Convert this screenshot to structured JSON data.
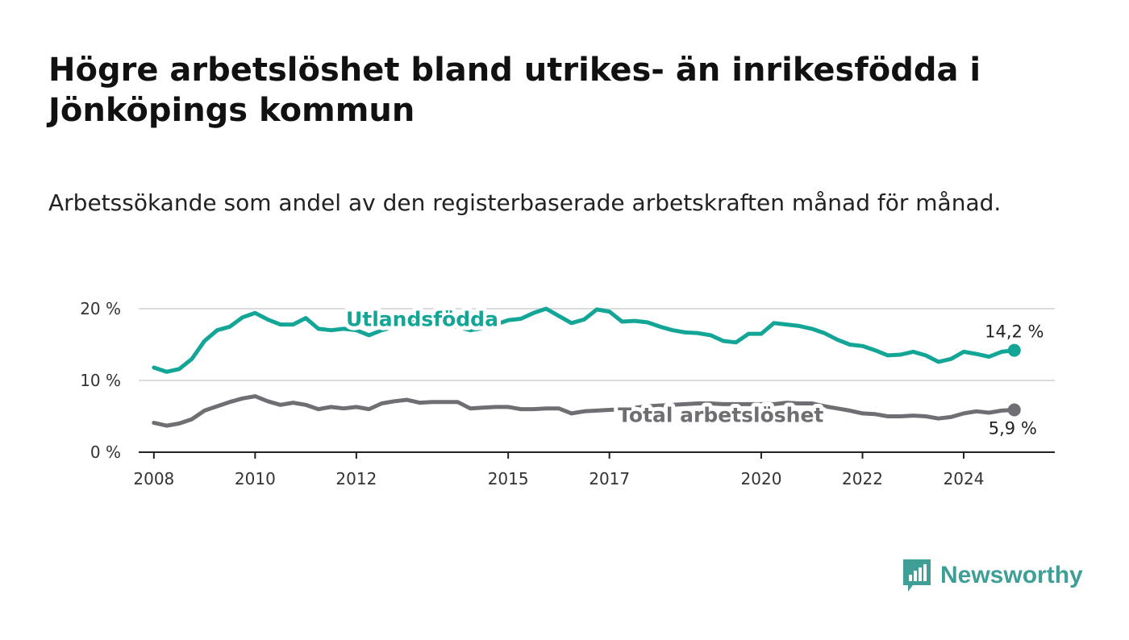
{
  "title": "Högre arbetslöshet bland utrikes- än inrikesfödda i Jönköpings kommun",
  "subtitle": "Arbetssökande som andel av den registerbaserade arbetskraften månad för månad.",
  "brand": {
    "name": "Newsworthy",
    "color": "#3f9f97"
  },
  "chart_data": {
    "type": "line",
    "title": "Högre arbetslöshet bland utrikes- än inrikesfödda i Jönköpings kommun",
    "subtitle": "Arbetssökande som andel av den registerbaserade arbetskraften månad för månad.",
    "xlabel": "",
    "ylabel": "",
    "xlim": [
      2007.7,
      2025.8
    ],
    "ylim": [
      0,
      20
    ],
    "y_ticks": [
      0,
      10,
      20
    ],
    "y_tick_labels": [
      "0 %",
      "10 %",
      "20 %"
    ],
    "x_ticks": [
      2008,
      2010,
      2012,
      2015,
      2017,
      2020,
      2022,
      2024
    ],
    "x_tick_labels": [
      "2008",
      "2010",
      "2012",
      "2015",
      "2017",
      "2020",
      "2022",
      "2024"
    ],
    "grid": true,
    "series": [
      {
        "name": "Utlandsfödda",
        "color": "#13a596",
        "end_label": "14,2 %",
        "x": [
          2008.0,
          2008.25,
          2008.5,
          2008.75,
          2009.0,
          2009.25,
          2009.5,
          2009.75,
          2010.0,
          2010.25,
          2010.5,
          2010.75,
          2011.0,
          2011.25,
          2011.5,
          2011.75,
          2012.0,
          2012.25,
          2012.5,
          2012.75,
          2013.0,
          2013.25,
          2013.5,
          2013.75,
          2014.0,
          2014.25,
          2014.5,
          2014.75,
          2015.0,
          2015.25,
          2015.5,
          2015.75,
          2016.0,
          2016.25,
          2016.5,
          2016.75,
          2017.0,
          2017.25,
          2017.5,
          2017.75,
          2018.0,
          2018.25,
          2018.5,
          2018.75,
          2019.0,
          2019.25,
          2019.5,
          2019.75,
          2020.0,
          2020.25,
          2020.5,
          2020.75,
          2021.0,
          2021.25,
          2021.5,
          2021.75,
          2022.0,
          2022.25,
          2022.5,
          2022.75,
          2023.0,
          2023.25,
          2023.5,
          2023.75,
          2024.0,
          2024.25,
          2024.5,
          2024.75,
          2025.0
        ],
        "values": [
          11.8,
          11.2,
          11.6,
          13.0,
          15.5,
          17.0,
          17.5,
          18.8,
          19.4,
          18.5,
          17.8,
          17.8,
          18.7,
          17.2,
          17.0,
          17.2,
          17.0,
          16.3,
          17.0,
          17.5,
          18.2,
          18.0,
          17.8,
          17.6,
          17.5,
          17.0,
          17.3,
          17.8,
          18.4,
          18.6,
          19.4,
          20.0,
          19.0,
          18.0,
          18.5,
          19.9,
          19.6,
          18.2,
          18.3,
          18.1,
          17.5,
          17.0,
          16.7,
          16.6,
          16.3,
          15.5,
          15.3,
          16.5,
          16.5,
          18.0,
          17.8,
          17.6,
          17.2,
          16.6,
          15.7,
          15.0,
          14.8,
          14.2,
          13.5,
          13.6,
          14.0,
          13.5,
          12.6,
          13.0,
          14.0,
          13.7,
          13.3,
          14.0,
          14.2
        ]
      },
      {
        "name": "Total arbetslöshet",
        "color": "#6e6e73",
        "end_label": "5,9 %",
        "x": [
          2008.0,
          2008.25,
          2008.5,
          2008.75,
          2009.0,
          2009.25,
          2009.5,
          2009.75,
          2010.0,
          2010.25,
          2010.5,
          2010.75,
          2011.0,
          2011.25,
          2011.5,
          2011.75,
          2012.0,
          2012.25,
          2012.5,
          2012.75,
          2013.0,
          2013.25,
          2013.5,
          2013.75,
          2014.0,
          2014.25,
          2014.5,
          2014.75,
          2015.0,
          2015.25,
          2015.5,
          2015.75,
          2016.0,
          2016.25,
          2016.5,
          2016.75,
          2017.0,
          2017.25,
          2017.5,
          2017.75,
          2018.0,
          2018.25,
          2018.5,
          2018.75,
          2019.0,
          2019.25,
          2019.5,
          2019.75,
          2020.0,
          2020.25,
          2020.5,
          2020.75,
          2021.0,
          2021.25,
          2021.5,
          2021.75,
          2022.0,
          2022.25,
          2022.5,
          2022.75,
          2023.0,
          2023.25,
          2023.5,
          2023.75,
          2024.0,
          2024.25,
          2024.5,
          2024.75,
          2025.0
        ],
        "values": [
          4.1,
          3.7,
          4.0,
          4.6,
          5.8,
          6.4,
          7.0,
          7.5,
          7.8,
          7.1,
          6.6,
          6.9,
          6.6,
          6.0,
          6.3,
          6.1,
          6.3,
          6.0,
          6.8,
          7.1,
          7.3,
          6.9,
          7.0,
          7.0,
          7.0,
          6.1,
          6.2,
          6.3,
          6.3,
          6.0,
          6.0,
          6.1,
          6.1,
          5.4,
          5.7,
          5.8,
          5.9,
          6.0,
          6.2,
          6.4,
          6.5,
          6.6,
          6.7,
          6.8,
          6.8,
          6.7,
          6.7,
          6.7,
          6.7,
          6.7,
          6.9,
          6.8,
          6.8,
          6.4,
          6.1,
          5.8,
          5.4,
          5.3,
          5.0,
          5.0,
          5.1,
          5.0,
          4.7,
          4.9,
          5.4,
          5.7,
          5.5,
          5.8,
          5.9
        ]
      }
    ]
  }
}
